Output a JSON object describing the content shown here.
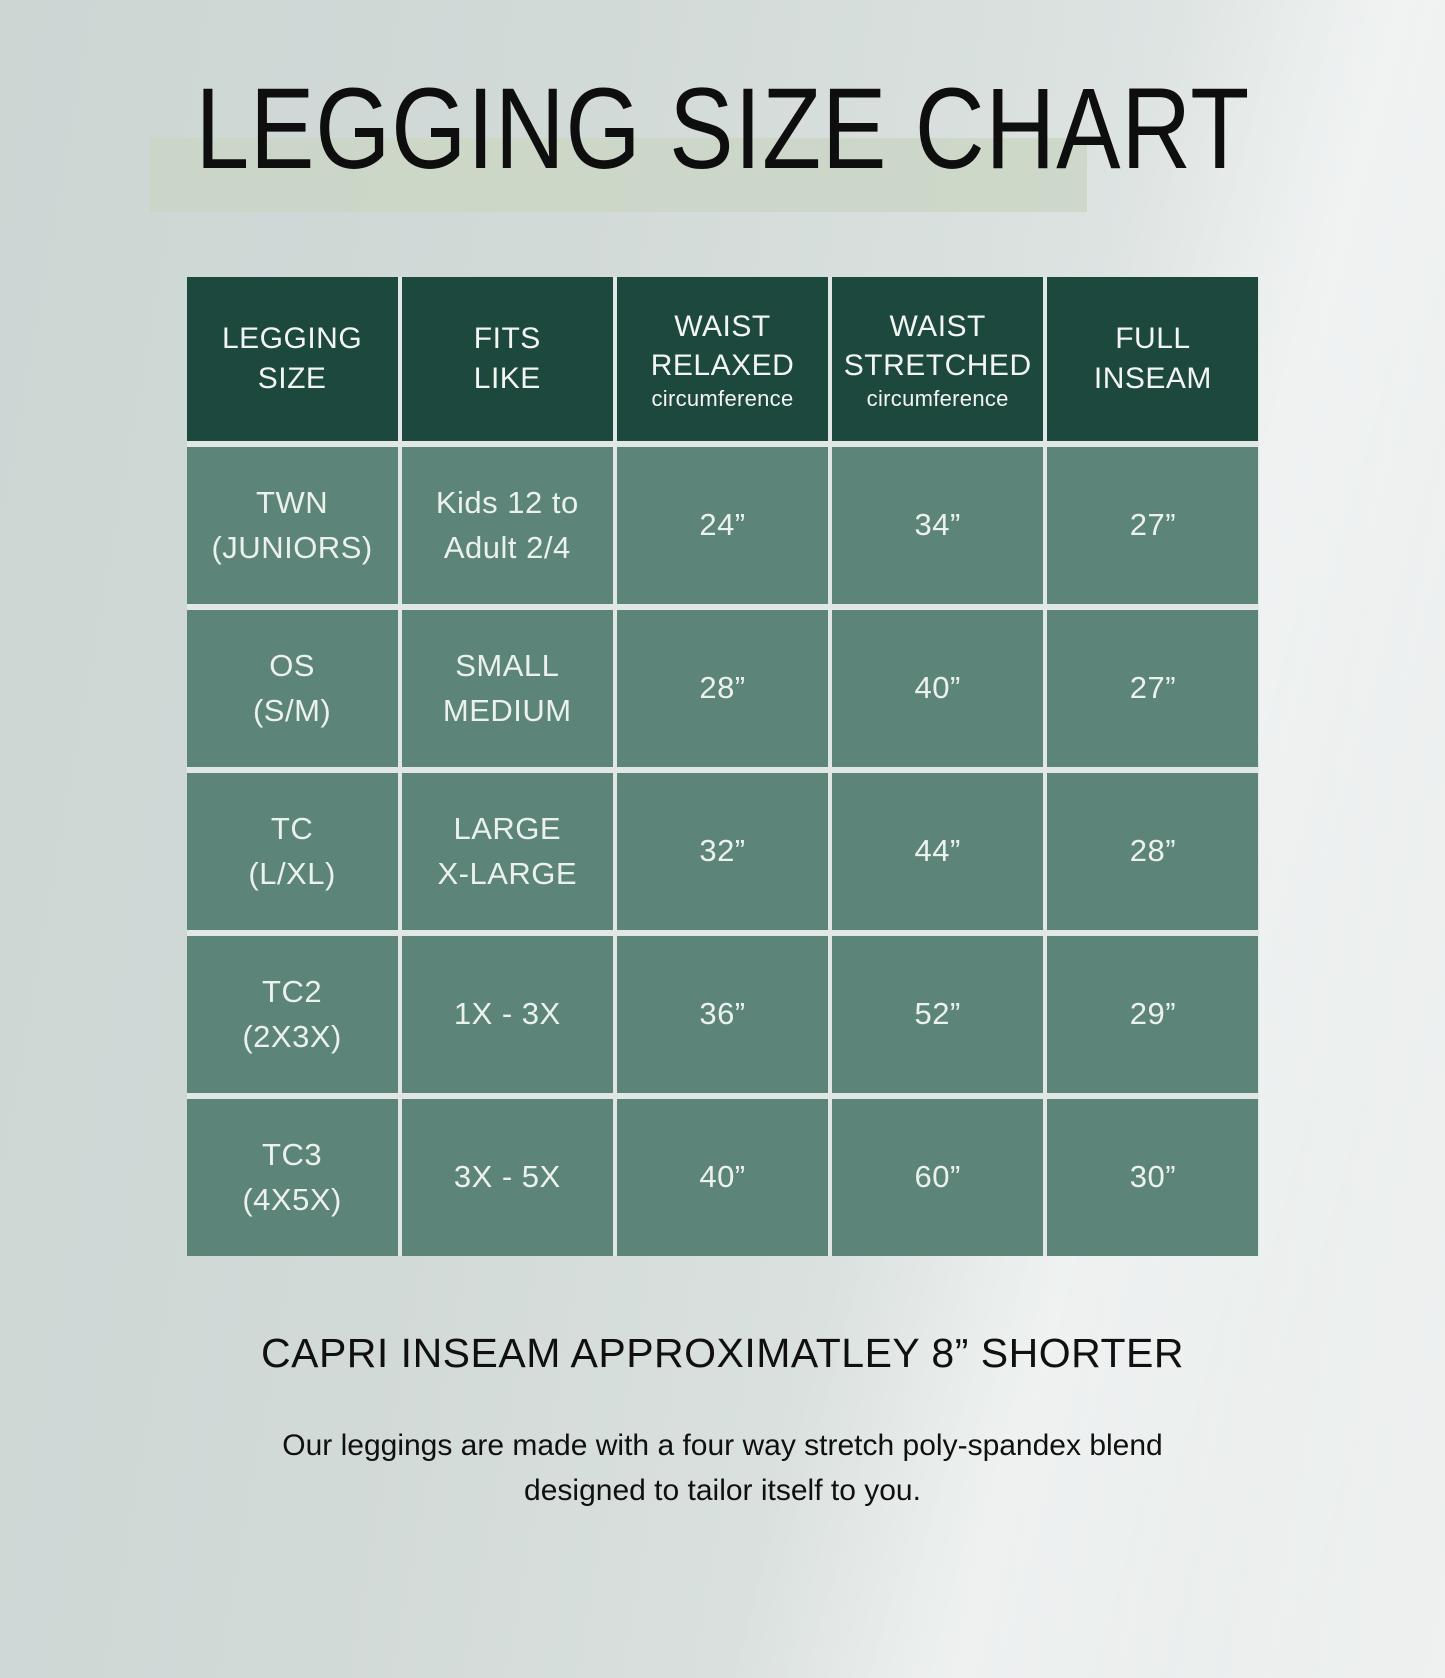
{
  "chart_data": {
    "type": "table",
    "title": "LEGGING SIZE CHART",
    "columns": [
      "LEGGING SIZE",
      "FITS LIKE",
      "WAIST RELAXED circumference",
      "WAIST STRETCHED circumference",
      "FULL INSEAM"
    ],
    "columns_display": [
      {
        "label": "LEGGING\nSIZE",
        "sub": ""
      },
      {
        "label": "FITS\nLIKE",
        "sub": ""
      },
      {
        "label": "WAIST\nRELAXED",
        "sub": "circumference"
      },
      {
        "label": "WAIST\nSTRETCHED",
        "sub": "circumference"
      },
      {
        "label": "FULL\nINSEAM",
        "sub": ""
      }
    ],
    "rows": [
      [
        "TWN\n(JUNIORS)",
        "Kids 12 to\nAdult 2/4",
        "24”",
        "34”",
        "27”"
      ],
      [
        "OS\n(S/M)",
        "SMALL\nMEDIUM",
        "28”",
        "40”",
        "27”"
      ],
      [
        "TC\n(L/XL)",
        "LARGE\nX-LARGE",
        "32”",
        "44”",
        "28”"
      ],
      [
        "TC2\n(2X3X)",
        "1X - 3X",
        "36”",
        "52”",
        "29”"
      ],
      [
        "TC3\n(4X5X)",
        "3X - 5X",
        "40”",
        "60”",
        "30”"
      ]
    ],
    "notes": [
      "CAPRI INSEAM APPROXIMATLEY 8” SHORTER",
      "Our leggings are made with a four way stretch poly-spandex blend\ndesigned to tailor itself to you."
    ],
    "layout_hints": {
      "legend_position": "none",
      "grid": "white gridlines between cells"
    },
    "colors": {
      "header_bg": "#1d483d",
      "cell_bg": "#5d8478",
      "title_highlight": "#cbd6c6",
      "background": "#d2dad8",
      "gridline": "#e0e7e4",
      "text_light": "#ebf1ec",
      "text_dark": "#101010"
    }
  }
}
